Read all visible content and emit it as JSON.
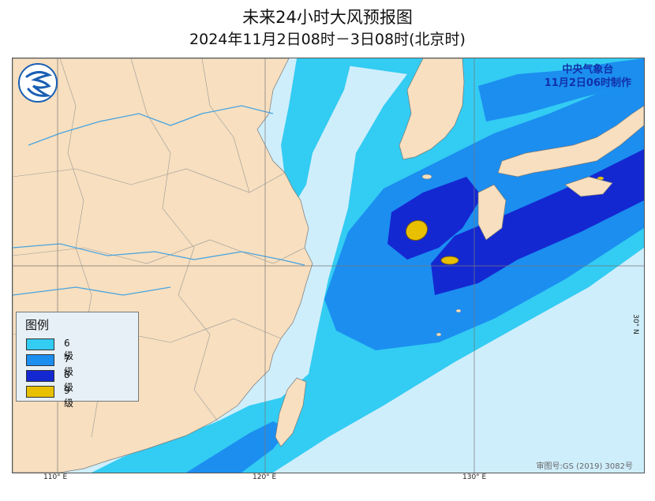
{
  "title": "未来24小时大风预报图",
  "subtitle": "2024年11月2日08时－3日08时(北京时)",
  "agency": {
    "name": "中央气象台",
    "issued": "11月2日06时制作"
  },
  "legend": {
    "title": "图例",
    "items": [
      {
        "label": "6级",
        "color": "#33ccf3"
      },
      {
        "label": "7级",
        "color": "#1b8ef0"
      },
      {
        "label": "8级",
        "color": "#1428d2"
      },
      {
        "label": "9级",
        "color": "#e8c000"
      }
    ]
  },
  "axes": {
    "lon_110": "110° E",
    "lon_120": "120° E",
    "lon_130": "130° E",
    "lat_30": "30° N"
  },
  "copyright": "审图号:GS (2019) 3082号",
  "colors": {
    "land": "#f7dfbf",
    "sea": "#cfeefc"
  }
}
